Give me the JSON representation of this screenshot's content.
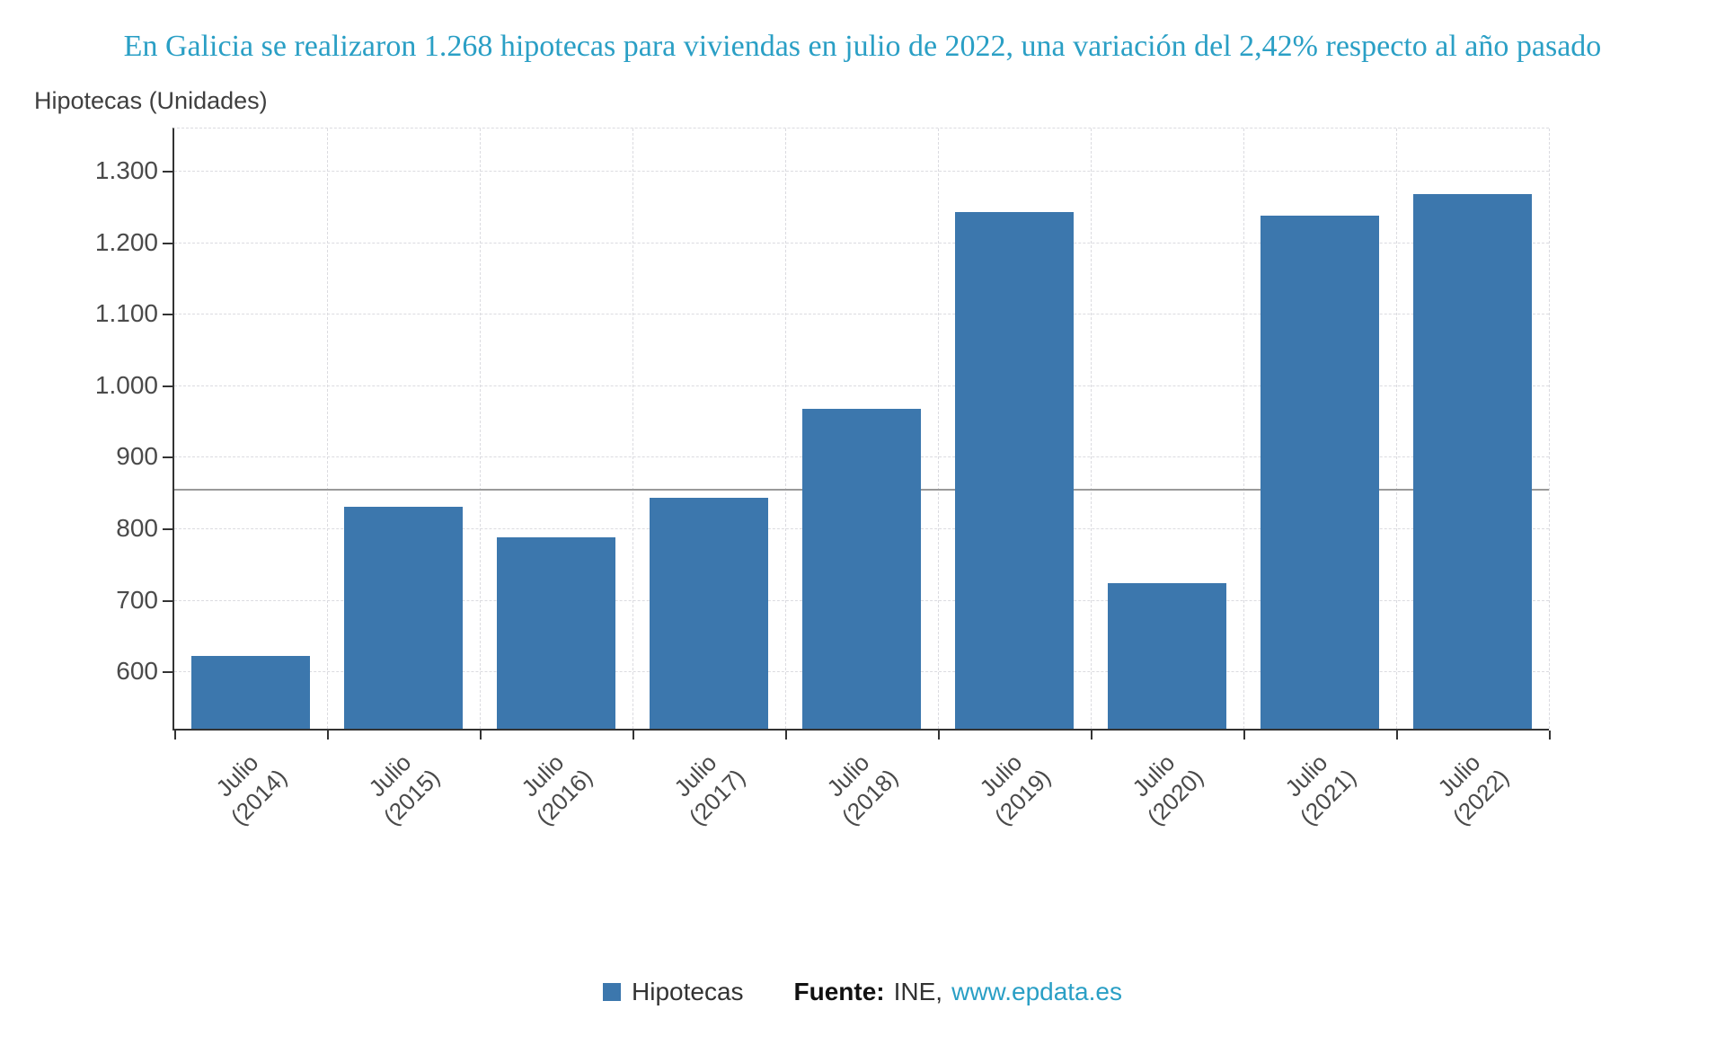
{
  "title": "En Galicia se realizaron 1.268 hipotecas para viviendas en julio de 2022, una variación del 2,42% respecto al año pasado",
  "y_axis_title": "Hipotecas (Unidades)",
  "legend": {
    "label": "Hipotecas"
  },
  "source": {
    "label": "Fuente:",
    "agency": "INE,",
    "link": "www.epdata.es"
  },
  "colors": {
    "bar": "#3c77ad",
    "title": "#2a9fc5",
    "grid": "#dbdbe0",
    "axis": "#333333",
    "tick_text": "#4a4a4a",
    "reference_line": "#9a9a9a"
  },
  "chart_data": {
    "type": "bar",
    "title": "En Galicia se realizaron 1.268 hipotecas para viviendas en julio de 2022, una variación del 2,42% respecto al año pasado",
    "xlabel": "",
    "ylabel": "Hipotecas (Unidades)",
    "series_name": "Hipotecas",
    "categories": [
      "Julio (2014)",
      "Julio (2015)",
      "Julio (2016)",
      "Julio (2017)",
      "Julio (2018)",
      "Julio (2019)",
      "Julio (2020)",
      "Julio (2021)",
      "Julio (2022)"
    ],
    "values": [
      622,
      830,
      788,
      843,
      967,
      1243,
      723,
      1238,
      1268
    ],
    "ylim": [
      520,
      1360
    ],
    "yticks": [
      {
        "value": 600,
        "label": "600"
      },
      {
        "value": 700,
        "label": "700"
      },
      {
        "value": 800,
        "label": "800"
      },
      {
        "value": 900,
        "label": "900"
      },
      {
        "value": 1000,
        "label": "1.000"
      },
      {
        "value": 1100,
        "label": "1.100"
      },
      {
        "value": 1200,
        "label": "1.200"
      },
      {
        "value": 1300,
        "label": "1.300"
      }
    ],
    "reference_line": 855,
    "grid": true,
    "legend_position": "bottom"
  }
}
